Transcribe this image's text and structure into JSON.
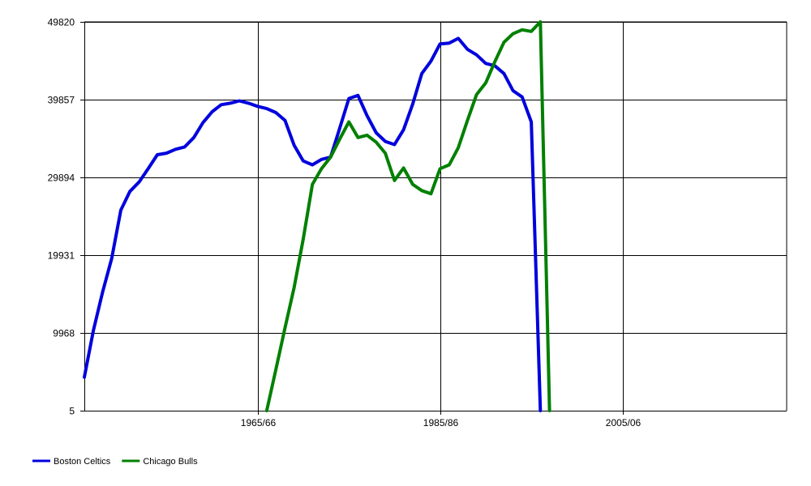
{
  "chart_data": {
    "type": "line",
    "title": "",
    "xlabel": "",
    "ylabel": "",
    "x_ticks": [
      {
        "label": "1965/66",
        "year": 1965
      },
      {
        "label": "1985/86",
        "year": 1985
      },
      {
        "label": "2005/06",
        "year": 2005
      }
    ],
    "xlim": [
      1946,
      2023
    ],
    "y_ticks": [
      5,
      9968,
      19931,
      29894,
      39857,
      49820
    ],
    "ylim": [
      5,
      49820
    ],
    "grid": true,
    "legend_position": "bottom-left",
    "series": [
      {
        "name": "Boston Celtics",
        "color": "#0000dd",
        "points": [
          [
            1946,
            4300
          ],
          [
            1947,
            10300
          ],
          [
            1948,
            15200
          ],
          [
            1949,
            19500
          ],
          [
            1950,
            25700
          ],
          [
            1951,
            28100
          ],
          [
            1952,
            29300
          ],
          [
            1953,
            31000
          ],
          [
            1954,
            32800
          ],
          [
            1955,
            33000
          ],
          [
            1956,
            33500
          ],
          [
            1957,
            33800
          ],
          [
            1958,
            35000
          ],
          [
            1959,
            36900
          ],
          [
            1960,
            38300
          ],
          [
            1961,
            39200
          ],
          [
            1962,
            39400
          ],
          [
            1963,
            39700
          ],
          [
            1964,
            39400
          ],
          [
            1965,
            39000
          ],
          [
            1966,
            38700
          ],
          [
            1967,
            38200
          ],
          [
            1968,
            37200
          ],
          [
            1969,
            34000
          ],
          [
            1970,
            32000
          ],
          [
            1971,
            31500
          ],
          [
            1972,
            32200
          ],
          [
            1973,
            32500
          ],
          [
            1974,
            36200
          ],
          [
            1975,
            40000
          ],
          [
            1976,
            40400
          ],
          [
            1977,
            37800
          ],
          [
            1978,
            35600
          ],
          [
            1979,
            34500
          ],
          [
            1980,
            34100
          ],
          [
            1981,
            36000
          ],
          [
            1982,
            39300
          ],
          [
            1983,
            43200
          ],
          [
            1984,
            44800
          ],
          [
            1985,
            47000
          ],
          [
            1986,
            47100
          ],
          [
            1987,
            47700
          ],
          [
            1988,
            46300
          ],
          [
            1989,
            45600
          ],
          [
            1990,
            44500
          ],
          [
            1991,
            44200
          ],
          [
            1992,
            43200
          ],
          [
            1993,
            41000
          ],
          [
            1994,
            40200
          ],
          [
            1995,
            37000
          ],
          [
            1996,
            5
          ]
        ]
      },
      {
        "name": "Chicago Bulls",
        "color": "#008000",
        "points": [
          [
            1966,
            5
          ],
          [
            1967,
            5300
          ],
          [
            1968,
            10600
          ],
          [
            1969,
            15800
          ],
          [
            1970,
            22000
          ],
          [
            1971,
            29000
          ],
          [
            1972,
            31000
          ],
          [
            1973,
            32500
          ],
          [
            1974,
            34800
          ],
          [
            1975,
            37000
          ],
          [
            1976,
            35000
          ],
          [
            1977,
            35300
          ],
          [
            1978,
            34400
          ],
          [
            1979,
            33000
          ],
          [
            1980,
            29500
          ],
          [
            1981,
            31100
          ],
          [
            1982,
            29000
          ],
          [
            1983,
            28200
          ],
          [
            1984,
            27800
          ],
          [
            1985,
            31000
          ],
          [
            1986,
            31500
          ],
          [
            1987,
            33700
          ],
          [
            1988,
            37200
          ],
          [
            1989,
            40500
          ],
          [
            1990,
            42000
          ],
          [
            1991,
            44700
          ],
          [
            1992,
            47200
          ],
          [
            1993,
            48300
          ],
          [
            1994,
            48800
          ],
          [
            1995,
            48600
          ],
          [
            1996,
            49820
          ],
          [
            1997,
            5
          ]
        ]
      }
    ]
  }
}
